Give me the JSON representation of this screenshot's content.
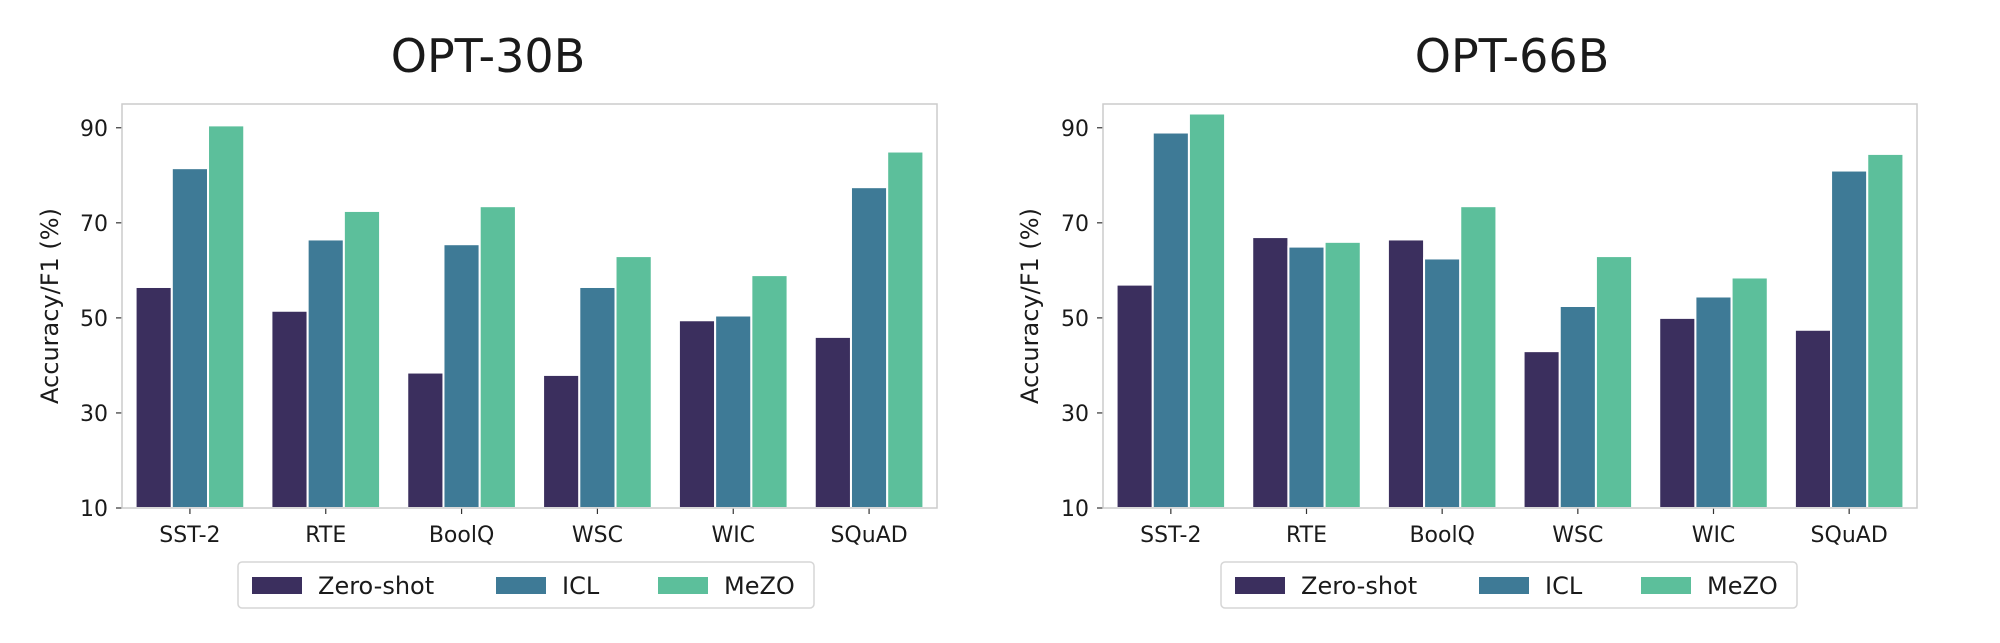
{
  "chart_data": [
    {
      "type": "bar",
      "title": "OPT-30B",
      "xlabel": "",
      "ylabel": "Accuracy/F1 (%)",
      "ylim": [
        10,
        95
      ],
      "yticks": [
        "10",
        "30",
        "50",
        "70",
        "90"
      ],
      "categories": [
        "SST-2",
        "RTE",
        "BoolQ",
        "WSC",
        "WIC",
        "SQuAD"
      ],
      "series": [
        {
          "name": "Zero-shot",
          "color": "#3b2f5e",
          "values": [
            56.5,
            51.5,
            38.5,
            38.0,
            49.5,
            46.0
          ]
        },
        {
          "name": "ICL",
          "color": "#3e7a96",
          "values": [
            81.5,
            66.5,
            65.5,
            56.5,
            50.5,
            77.5
          ]
        },
        {
          "name": "MeZO",
          "color": "#5cbf9b",
          "values": [
            90.5,
            72.5,
            73.5,
            63.0,
            59.0,
            85.0
          ]
        }
      ],
      "legend": "bottom-center",
      "grid": false
    },
    {
      "type": "bar",
      "title": "OPT-66B",
      "xlabel": "",
      "ylabel": "Accuracy/F1 (%)",
      "ylim": [
        10,
        95
      ],
      "yticks": [
        "10",
        "30",
        "50",
        "70",
        "90"
      ],
      "categories": [
        "SST-2",
        "RTE",
        "BoolQ",
        "WSC",
        "WIC",
        "SQuAD"
      ],
      "series": [
        {
          "name": "Zero-shot",
          "color": "#3b2f5e",
          "values": [
            57.0,
            67.0,
            66.5,
            43.0,
            50.0,
            47.5
          ]
        },
        {
          "name": "ICL",
          "color": "#3e7a96",
          "values": [
            89.0,
            65.0,
            62.5,
            52.5,
            54.5,
            81.0
          ]
        },
        {
          "name": "MeZO",
          "color": "#5cbf9b",
          "values": [
            93.0,
            66.0,
            73.5,
            63.0,
            58.5,
            84.5
          ]
        }
      ],
      "legend": "bottom-center",
      "grid": false
    }
  ]
}
